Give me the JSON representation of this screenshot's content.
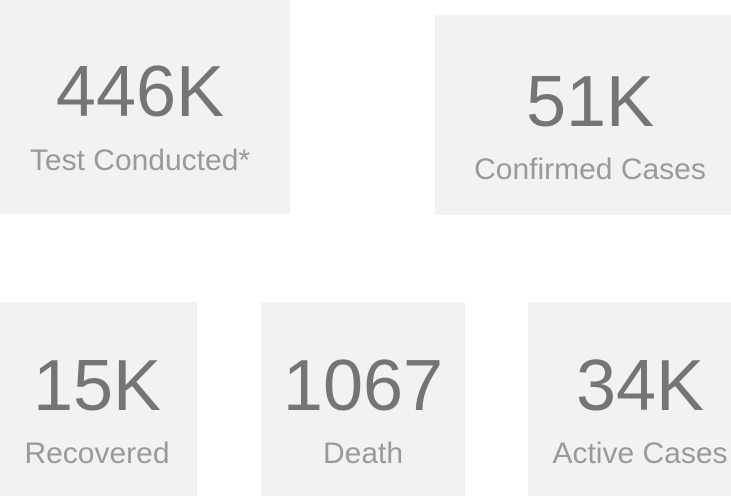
{
  "cards": [
    {
      "value": "446K",
      "label": "Test Conducted*"
    },
    {
      "value": "51K",
      "label": "Confirmed Cases"
    },
    {
      "value": "15K",
      "label": "Recovered"
    },
    {
      "value": "1067",
      "label": "Death"
    },
    {
      "value": "34K",
      "label": "Active Cases"
    }
  ]
}
